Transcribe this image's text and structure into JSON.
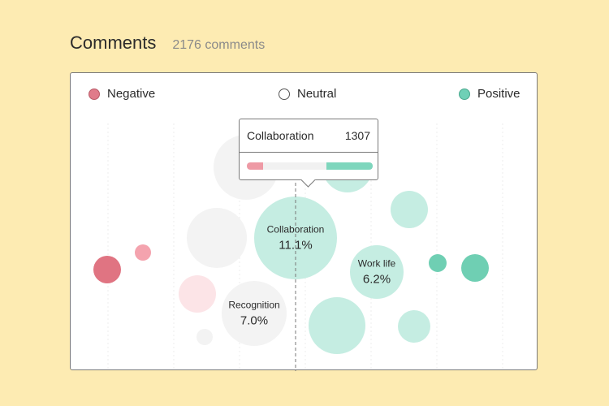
{
  "header": {
    "title": "Comments",
    "count_text": "2176 comments"
  },
  "legend": [
    {
      "label": "Negative",
      "color": "#e07b8a"
    },
    {
      "label": "Neutral",
      "color": "#ffffff"
    },
    {
      "label": "Positive",
      "color": "#6fd0b6"
    }
  ],
  "tooltip": {
    "title": "Collaboration",
    "value": "1307",
    "negative_share": 0.13,
    "positive_share": 0.37,
    "colors": {
      "negative": "#ee9aa5",
      "positive": "#7ed6bd",
      "track": "#f1f1f1"
    }
  },
  "bubble_colors": {
    "negative_strong": "#e07482",
    "negative": "#f4a3ae",
    "negative_light": "#fce4e7",
    "neutral": "#f3f3f3",
    "positive": "#c5ede2",
    "positive_strong": "#6fcfb3"
  },
  "bubbles": [
    {
      "category": "Collaboration",
      "share": "11.1%",
      "tone": "positive"
    },
    {
      "category": "Work life",
      "share": "6.2%",
      "tone": "positive"
    },
    {
      "category": "Recognition",
      "share": "7.0%",
      "tone": "neutral"
    }
  ]
}
